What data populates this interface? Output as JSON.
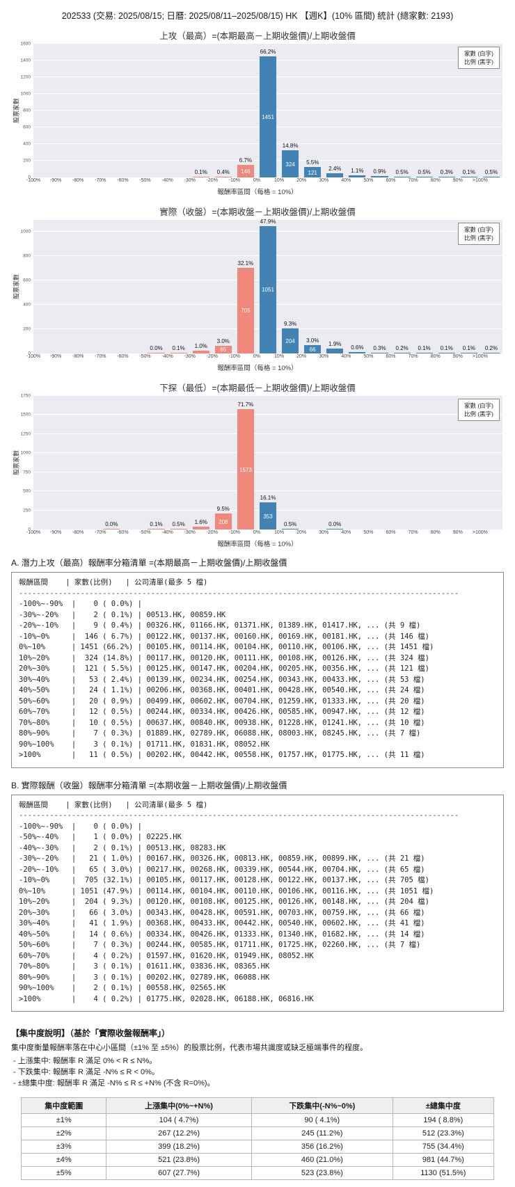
{
  "header": {
    "title": "202533 (交易: 2025/08/15; 日曆: 2025/08/11–2025/08/15) HK 【週K】(10% 區間) 統計 (總家數: 2193)"
  },
  "colors": {
    "positive": "#4183b5",
    "negative": "#f0897b",
    "plot_bg": "#ebebf2",
    "grid": "#ffffff"
  },
  "chart_data": [
    {
      "type": "bar",
      "title": "上攻（最高）=(本期最高－上期收盤價)/上期收盤價",
      "xlabel": "報酬率區間（每格 = 10%）",
      "ylabel": "股票家數",
      "legend": [
        "家數 (白字)",
        "比例 (黑字)"
      ],
      "ylim": [
        0,
        1600
      ],
      "ytick_step": 200,
      "categories": [
        "-100%",
        "-90%",
        "-80%",
        "-70%",
        "-60%",
        "-50%",
        "-40%",
        "-30%",
        "-20%",
        "-10%",
        "0%",
        "10%",
        "20%",
        "30%",
        "40%",
        "50%",
        "60%",
        "70%",
        "80%",
        "90%",
        ">100%"
      ],
      "values": [
        0,
        0,
        0,
        0,
        0,
        0,
        0,
        2,
        9,
        146,
        1451,
        324,
        121,
        53,
        24,
        20,
        12,
        10,
        7,
        3,
        11
      ],
      "pct_labels": [
        "",
        "",
        "",
        "",
        "",
        "",
        "",
        "0.1%",
        "0.4%",
        "6.7%",
        "66.2%",
        "14.8%",
        "5.5%",
        "2.4%",
        "1.1%",
        "0.9%",
        "0.5%",
        "0.5%",
        "0.3%",
        "0.1%",
        "0.5%"
      ],
      "count_labels": [
        "",
        "",
        "",
        "",
        "",
        "",
        "",
        "",
        "",
        "146",
        "1451",
        "324",
        "121",
        "",
        "",
        "",
        "",
        "",
        "",
        "",
        ""
      ]
    },
    {
      "type": "bar",
      "title": "實際（收盤）=(本期收盤－上期收盤價)/上期收盤價",
      "xlabel": "報酬率區間（每格 = 10%）",
      "ylabel": "股票家數",
      "legend": [
        "家數 (白字)",
        "比例 (黑字)"
      ],
      "ylim": [
        0,
        1100
      ],
      "ytick_step": 200,
      "categories": [
        "-100%",
        "-90%",
        "-80%",
        "-70%",
        "-60%",
        "-50%",
        "-40%",
        "-30%",
        "-20%",
        "-10%",
        "0%",
        "10%",
        "20%",
        "30%",
        "40%",
        "50%",
        "60%",
        "70%",
        "80%",
        "90%",
        ">100%"
      ],
      "values": [
        0,
        0,
        0,
        0,
        0,
        1,
        2,
        21,
        65,
        705,
        1051,
        204,
        66,
        41,
        14,
        7,
        4,
        3,
        3,
        2,
        4
      ],
      "pct_labels": [
        "",
        "",
        "",
        "",
        "",
        "0.0%",
        "0.1%",
        "1.0%",
        "3.0%",
        "32.1%",
        "47.9%",
        "9.3%",
        "3.0%",
        "1.9%",
        "0.6%",
        "0.3%",
        "0.2%",
        "0.1%",
        "0.1%",
        "0.1%",
        "0.2%"
      ],
      "count_labels": [
        "",
        "",
        "",
        "",
        "",
        "",
        "",
        "",
        "65",
        "705",
        "1051",
        "204",
        "66",
        "",
        "",
        "",
        "",
        "",
        "",
        "",
        ""
      ]
    },
    {
      "type": "bar",
      "title": "下探（最低）=(本期最低－上期收盤價)/上期收盤價",
      "xlabel": "報酬率區間（每格 = 10%）",
      "ylabel": "股票家數",
      "legend": [
        "家數 (白字)",
        "比例 (黑字)"
      ],
      "ylim": [
        0,
        1750
      ],
      "ytick_step": 250,
      "categories": [
        "-100%",
        "-90%",
        "-80%",
        "-70%",
        "-60%",
        "-50%",
        "-40%",
        "-30%",
        "-20%",
        "-10%",
        "0%",
        "10%",
        "20%",
        "30%",
        "40%",
        "50%",
        "60%",
        "70%",
        "80%",
        "90%",
        ">100%"
      ],
      "values": [
        0,
        0,
        0,
        1,
        0,
        2,
        11,
        35,
        208,
        1573,
        353,
        11,
        0,
        1,
        0,
        0,
        0,
        0,
        0,
        0,
        0
      ],
      "pct_labels": [
        "",
        "",
        "",
        "0.0%",
        "",
        "0.1%",
        "0.5%",
        "1.6%",
        "9.5%",
        "71.7%",
        "16.1%",
        "0.5%",
        "",
        "0.0%",
        "",
        "",
        "",
        "",
        "",
        "",
        ""
      ],
      "count_labels": [
        "",
        "",
        "",
        "",
        "",
        "",
        "",
        "",
        "208",
        "1573",
        "353",
        "",
        "",
        "",
        "",
        "",
        "",
        "",
        "",
        "",
        ""
      ]
    }
  ],
  "section_a": {
    "title": "A. 潛力上攻（最高）報酬率分箱清單 =(本期最高－上期收盤價)/上期收盤價",
    "columns": "報酬區間    | 家數(比例)   | 公司清單(最多 5 檔)",
    "separator": "----------------------------------------------------------------------------------------------------",
    "rows": [
      "-100%~-90%  |    0 ( 0.0%) | ",
      "-30%~-20%   |    2 ( 0.1%) | 00513.HK, 00859.HK",
      "-20%~-10%   |    9 ( 0.4%) | 00326.HK, 01166.HK, 01371.HK, 01389.HK, 01417.HK, ... (共 9 檔)",
      "-10%~0%     |  146 ( 6.7%) | 00122.HK, 00137.HK, 00160.HK, 00169.HK, 00181.HK, ... (共 146 檔)",
      "0%~10%      | 1451 (66.2%) | 00105.HK, 00114.HK, 00104.HK, 00110.HK, 00106.HK, ... (共 1451 檔)",
      "10%~20%     |  324 (14.8%) | 00117.HK, 00120.HK, 00111.HK, 00108.HK, 00126.HK, ... (共 324 檔)",
      "20%~30%     |  121 ( 5.5%) | 00125.HK, 00147.HK, 00204.HK, 00205.HK, 00356.HK, ... (共 121 檔)",
      "30%~40%     |   53 ( 2.4%) | 00139.HK, 00234.HK, 00254.HK, 00343.HK, 00433.HK, ... (共 53 檔)",
      "40%~50%     |   24 ( 1.1%) | 00206.HK, 00368.HK, 00401.HK, 00428.HK, 00540.HK, ... (共 24 檔)",
      "50%~60%     |   20 ( 0.9%) | 00499.HK, 00602.HK, 00704.HK, 01259.HK, 01333.HK, ... (共 20 檔)",
      "60%~70%     |   12 ( 0.5%) | 00244.HK, 00334.HK, 00426.HK, 00585.HK, 00947.HK, ... (共 12 檔)",
      "70%~80%     |   10 ( 0.5%) | 00637.HK, 00840.HK, 00938.HK, 01228.HK, 01241.HK, ... (共 10 檔)",
      "80%~90%     |    7 ( 0.3%) | 01889.HK, 02789.HK, 06088.HK, 08003.HK, 08245.HK, ... (共 7 檔)",
      "90%~100%    |    3 ( 0.1%) | 01711.HK, 01831.HK, 08052.HK",
      ">100%       |   11 ( 0.5%) | 00202.HK, 00442.HK, 00558.HK, 01757.HK, 01775.HK, ... (共 11 檔)"
    ]
  },
  "section_b": {
    "title": "B. 實際報酬（收盤）報酬率分箱清單 =(本期收盤－上期收盤價)/上期收盤價",
    "columns": "報酬區間    | 家數(比例)   | 公司清單(最多 5 檔)",
    "separator": "----------------------------------------------------------------------------------------------------",
    "rows": [
      "-100%~-90%  |    0 ( 0.0%) | ",
      "-50%~-40%   |    1 ( 0.0%) | 02225.HK",
      "-40%~-30%   |    2 ( 0.1%) | 00513.HK, 08283.HK",
      "-30%~-20%   |   21 ( 1.0%) | 00167.HK, 00326.HK, 00813.HK, 00859.HK, 00899.HK, ... (共 21 檔)",
      "-20%~-10%   |   65 ( 3.0%) | 00217.HK, 00268.HK, 00339.HK, 00544.HK, 00704.HK, ... (共 65 檔)",
      "-10%~0%     |  705 (32.1%) | 00105.HK, 00117.HK, 00128.HK, 00122.HK, 00137.HK, ... (共 705 檔)",
      "0%~10%      | 1051 (47.9%) | 00114.HK, 00104.HK, 00110.HK, 00106.HK, 00116.HK, ... (共 1051 檔)",
      "10%~20%     |  204 ( 9.3%) | 00120.HK, 00108.HK, 00125.HK, 00126.HK, 00148.HK, ... (共 204 檔)",
      "20%~30%     |   66 ( 3.0%) | 00343.HK, 00428.HK, 00591.HK, 00703.HK, 00759.HK, ... (共 66 檔)",
      "30%~40%     |   41 ( 1.9%) | 00368.HK, 00433.HK, 00442.HK, 00540.HK, 00602.HK, ... (共 41 檔)",
      "40%~50%     |   14 ( 0.6%) | 00334.HK, 00426.HK, 01333.HK, 01340.HK, 01682.HK, ... (共 14 檔)",
      "50%~60%     |    7 ( 0.3%) | 00244.HK, 00585.HK, 01711.HK, 01725.HK, 02260.HK, ... (共 7 檔)",
      "60%~70%     |    4 ( 0.2%) | 01597.HK, 01620.HK, 01949.HK, 08052.HK",
      "70%~80%     |    3 ( 0.1%) | 01611.HK, 03836.HK, 08365.HK",
      "80%~90%     |    3 ( 0.1%) | 00202.HK, 02789.HK, 06088.HK",
      "90%~100%    |    2 ( 0.1%) | 00558.HK, 02565.HK",
      ">100%       |    4 ( 0.2%) | 01775.HK, 02028.HK, 06188.HK, 06816.HK"
    ]
  },
  "concentration": {
    "heading": "【集中度說明】（基於「實際收盤報酬率」）",
    "description": "集中度衡量報酬率落在中心小區間（±1% 至 ±5%）的股票比例，代表市場共識度或缺乏極端事件的程度。",
    "bullets": [
      " - 上漲集中: 報酬率 R 滿足 0% < R ≤ N%。",
      " - 下跌集中: 報酬率 R 滿足 -N% ≤ R < 0%。",
      " - ±總集中度: 報酬率 R 滿足 -N% ≤ R ≤ +N% (不含 R=0%)。"
    ],
    "table": {
      "headers": [
        "集中度範圍",
        "上漲集中(0%~+N%)",
        "下跌集中(-N%~0%)",
        "±總集中度"
      ],
      "rows": [
        [
          "±1%",
          "104 ( 4.7%)",
          "90 ( 4.1%)",
          "194 ( 8.8%)"
        ],
        [
          "±2%",
          "267 (12.2%)",
          "245 (11.2%)",
          "512 (23.3%)"
        ],
        [
          "±3%",
          "399 (18.2%)",
          "356 (16.2%)",
          "755 (34.4%)"
        ],
        [
          "±4%",
          "521 (23.8%)",
          "460 (21.0%)",
          "981 (44.7%)"
        ],
        [
          "±5%",
          "607 (27.7%)",
          "523 (23.8%)",
          "1130 (51.5%)"
        ]
      ]
    }
  }
}
